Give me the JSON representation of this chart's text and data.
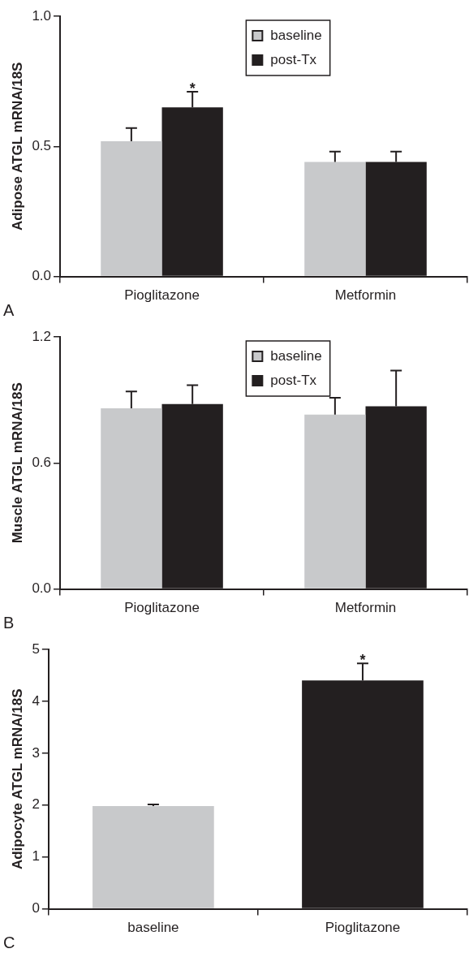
{
  "chart_data": [
    {
      "type": "bar",
      "ylabel": "Adipose ATGL mRNA/18S",
      "categories": [
        "Pioglitazone",
        "Metformin"
      ],
      "series": [
        {
          "name": "baseline",
          "color": "#c8c9cb",
          "values": [
            0.52,
            0.44
          ],
          "errors": [
            0.05,
            0.04
          ]
        },
        {
          "name": "post-Tx",
          "color": "#231f20",
          "values": [
            0.65,
            0.44
          ],
          "errors": [
            0.06,
            0.04
          ]
        }
      ],
      "ylim": [
        0,
        1
      ],
      "yticks": [
        {
          "value": 0,
          "label": "0.0"
        },
        {
          "value": 0.5,
          "label": "0.5"
        },
        {
          "value": 1,
          "label": "1.0"
        }
      ],
      "grid": false,
      "legend": "top",
      "annotations": [
        "*",
        "A"
      ]
    },
    {
      "type": "bar",
      "ylabel": "Muscle ATGL mRNA/18S",
      "categories": [
        "Pioglitazone",
        "Metformin"
      ],
      "series": [
        {
          "name": "baseline",
          "color": "#c8c9cb",
          "values": [
            0.86,
            0.83
          ],
          "errors": [
            0.08,
            0.08
          ]
        },
        {
          "name": "post-Tx",
          "color": "#231f20",
          "values": [
            0.88,
            0.87
          ],
          "errors": [
            0.09,
            0.17
          ]
        }
      ],
      "ylim": [
        0,
        1.2
      ],
      "yticks": [
        {
          "value": 0,
          "label": "0.0"
        },
        {
          "value": 0.6,
          "label": "0.6"
        },
        {
          "value": 1.2,
          "label": "1.2"
        }
      ],
      "grid": false,
      "legend": "top",
      "annotations": [
        "B"
      ]
    },
    {
      "type": "bar",
      "ylabel": "Adipocyte ATGL mRNA/18S",
      "categories": [
        "baseline",
        "Pioglitazone"
      ],
      "values": [
        1.98,
        4.4
      ],
      "colors": [
        "#c8c9cb",
        "#231f20"
      ],
      "errors": [
        0.03,
        0.33
      ],
      "ylim": [
        0,
        5
      ],
      "yticks": [
        0,
        1,
        2,
        3,
        4,
        5
      ],
      "grid": false,
      "annotations": [
        "*",
        "C"
      ]
    }
  ]
}
